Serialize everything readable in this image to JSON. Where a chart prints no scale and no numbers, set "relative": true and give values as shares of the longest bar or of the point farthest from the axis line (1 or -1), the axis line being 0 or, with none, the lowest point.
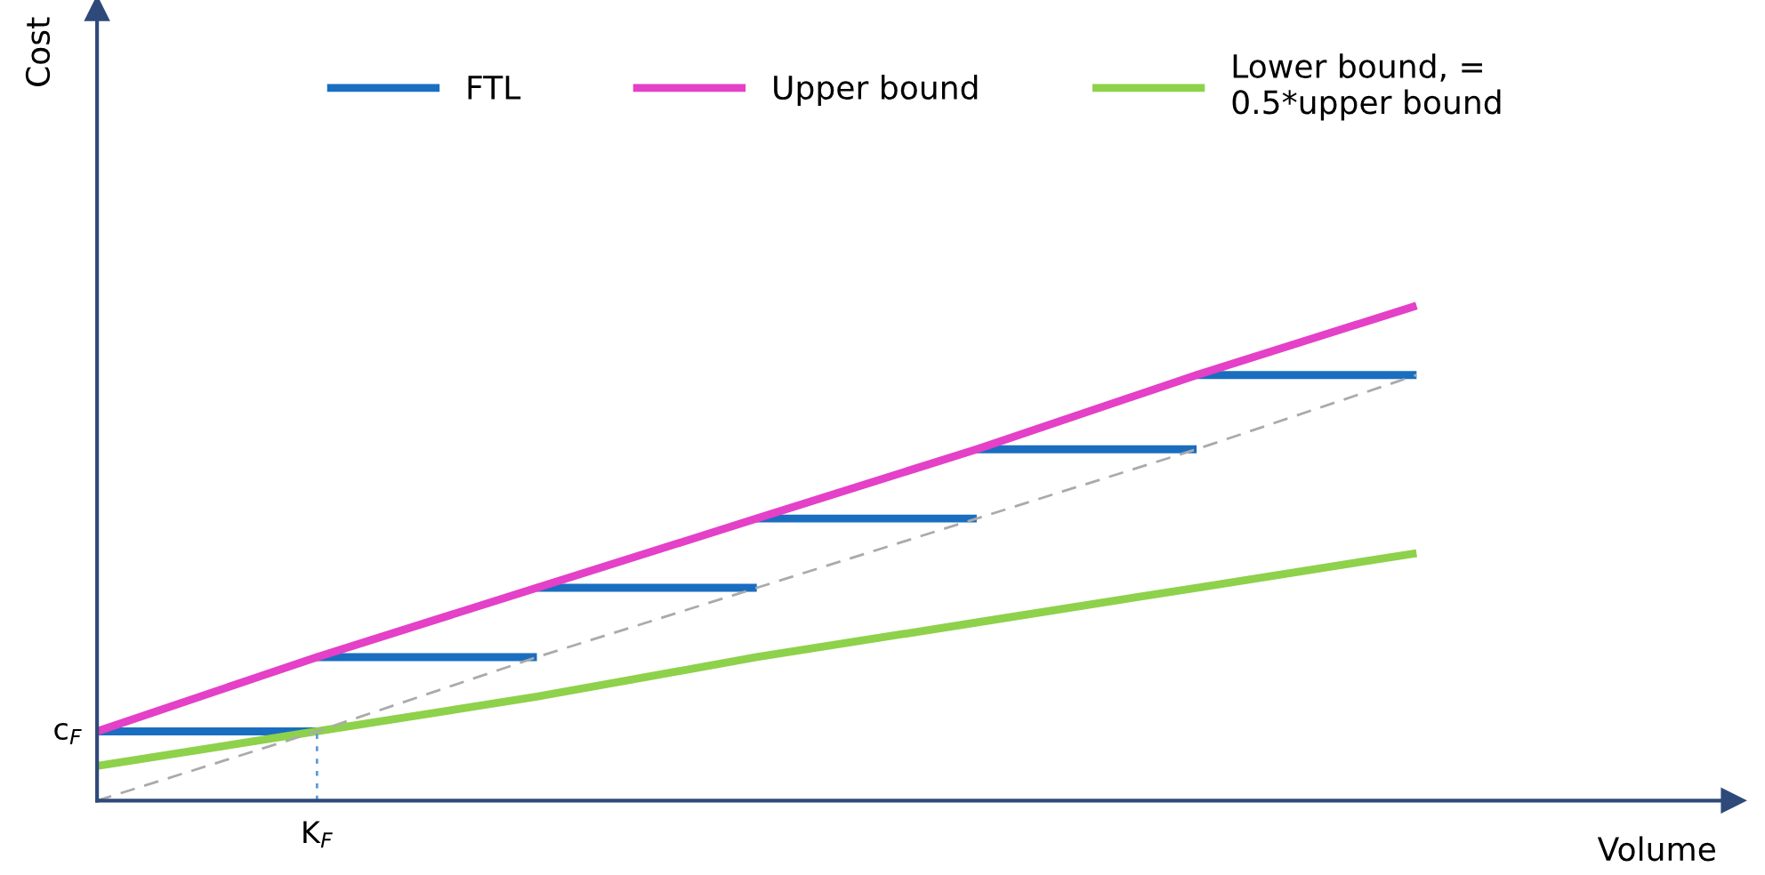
{
  "chart_data": {
    "type": "line",
    "xlabel": "Volume",
    "relative": true,
    "categories": [
      null,
      null,
      null,
      null,
      null,
      null,
      null
    ],
    "annotations": [
      "c$_{F}$",
      "K$_{F}$",
      "Cost"
    ],
    "legend": "top",
    "marker": "none",
    "series": [
      {
        "name": "FTL",
        "color": "#1a6ec0",
        "values": [
          0.14,
          0.14,
          null,
          null,
          null,
          null,
          null
        ]
      },
      {
        "color": "#1a6ec0",
        "values": [
          null,
          0.29,
          0.29,
          null,
          null,
          null,
          null
        ]
      },
      {
        "color": "#1a6ec0",
        "values": [
          null,
          null,
          0.43,
          0.43,
          null,
          null,
          null
        ]
      },
      {
        "color": "#1a6ec0",
        "values": [
          null,
          null,
          null,
          0.57,
          0.57,
          null,
          null
        ]
      },
      {
        "color": "#1a6ec0",
        "values": [
          null,
          null,
          null,
          null,
          0.71,
          0.71,
          null
        ]
      },
      {
        "color": "#1a6ec0",
        "values": [
          null,
          null,
          null,
          null,
          null,
          0.86,
          0.86
        ]
      },
      {
        "name": "Upper bound",
        "color": "#e440c8",
        "values": [
          0.14,
          0.29,
          0.43,
          0.57,
          0.71,
          0.86,
          1.0
        ]
      },
      {
        "name": "Lower bound, =\n0.5*upper bound",
        "color": "#8ed14b",
        "values": [
          0.07,
          0.14,
          0.21,
          0.29,
          0.36,
          0.43,
          0.5
        ]
      },
      {
        "color": "#aaaaaa",
        "line_style": "dashed",
        "values": [
          0,
          0.14,
          0.29,
          0.43,
          0.57,
          0.71,
          0.86
        ]
      }
    ]
  }
}
